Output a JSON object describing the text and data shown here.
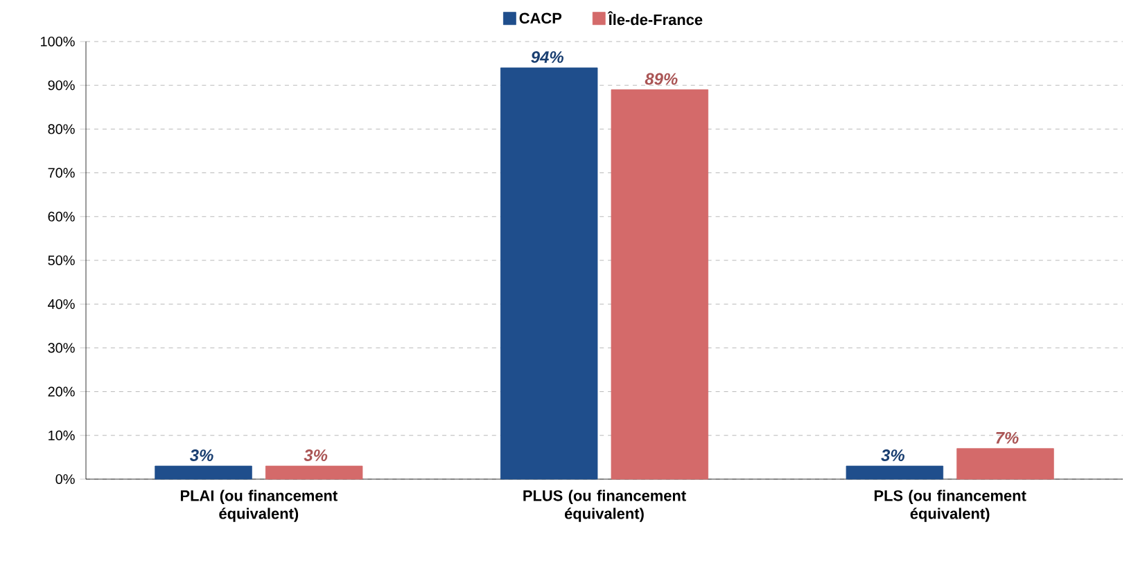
{
  "chart_data": {
    "type": "bar",
    "categories": [
      "PLAI (ou financement équivalent)",
      "PLUS (ou financement équivalent)",
      "PLS (ou financement équivalent)"
    ],
    "series": [
      {
        "name": "CACP",
        "color": "#1f4e8c",
        "values": [
          3,
          94,
          3
        ],
        "value_labels": [
          "3%",
          "94%",
          "3%"
        ]
      },
      {
        "name": "Île-de-France",
        "color": "#d46a6a",
        "values": [
          3,
          89,
          7
        ],
        "value_labels": [
          "3%",
          "89%",
          "7%"
        ]
      }
    ],
    "ylim": [
      0,
      100
    ],
    "yticks": [
      {
        "value": 0,
        "label": "0%"
      },
      {
        "value": 10,
        "label": "10%"
      },
      {
        "value": 20,
        "label": "20%"
      },
      {
        "value": 30,
        "label": "30%"
      },
      {
        "value": 40,
        "label": "40%"
      },
      {
        "value": 50,
        "label": "50%"
      },
      {
        "value": 60,
        "label": "60%"
      },
      {
        "value": 70,
        "label": "70%"
      },
      {
        "value": 80,
        "label": "80%"
      },
      {
        "value": 90,
        "label": "90%"
      },
      {
        "value": 100,
        "label": "100%"
      }
    ],
    "grid": "y",
    "legend": "top"
  }
}
